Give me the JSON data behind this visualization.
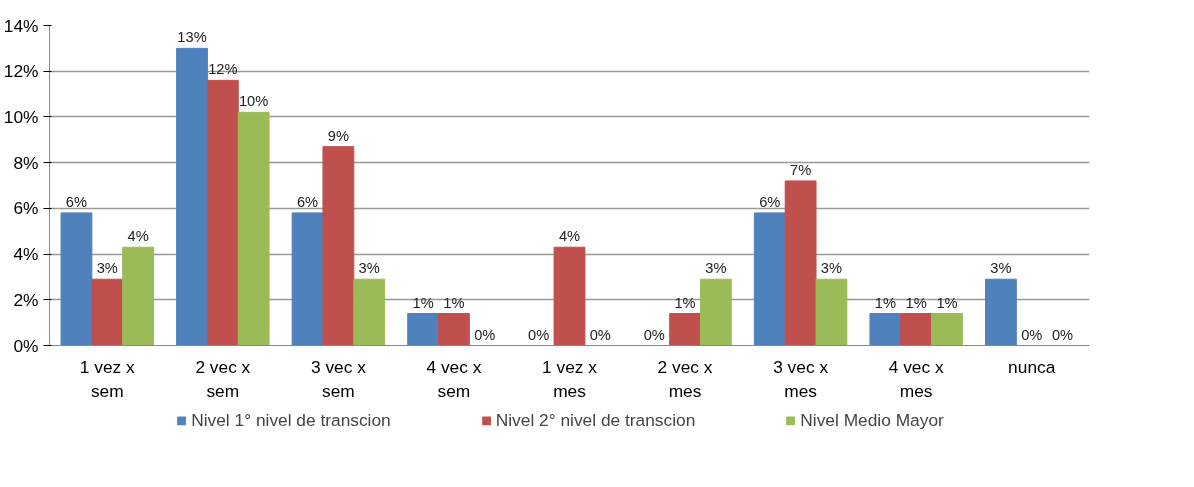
{
  "chart_data": {
    "type": "bar",
    "categories": [
      "1 vez x sem",
      "2 vec x sem",
      "3 vec x sem",
      "4 vec x sem",
      "1 vez x mes",
      "2 vec x mes",
      "3 vec x mes",
      "4 vec x mes",
      "nunca"
    ],
    "series": [
      {
        "name": "Nivel 1° nivel de transcion",
        "color": "#4f81bd",
        "values": [
          5.8,
          13.0,
          5.8,
          1.4,
          0,
          0,
          5.8,
          1.4,
          2.9
        ],
        "value_labels": [
          "6%",
          "13%",
          "6%",
          "1%",
          "0%",
          "0%",
          "6%",
          "1%",
          "3%"
        ]
      },
      {
        "name": "Nivel 2° nivel de transcion",
        "color": "#c0504d",
        "values": [
          2.9,
          11.6,
          8.7,
          1.4,
          4.3,
          1.4,
          7.2,
          1.4,
          0
        ],
        "value_labels": [
          "3%",
          "12%",
          "9%",
          "1%",
          "4%",
          "1%",
          "7%",
          "1%",
          "0%"
        ]
      },
      {
        "name": "Nivel Medio Mayor",
        "color": "#9bbb59",
        "values": [
          4.3,
          10.2,
          2.9,
          0,
          0,
          2.9,
          2.9,
          1.4,
          0
        ],
        "value_labels": [
          "4%",
          "10%",
          "3%",
          "0%",
          "0%",
          "3%",
          "3%",
          "1%",
          "0%"
        ]
      }
    ],
    "ylim": [
      0,
      14
    ],
    "yticks": [
      {
        "value": 0,
        "label": "0%"
      },
      {
        "value": 2,
        "label": "2%"
      },
      {
        "value": 4,
        "label": "4%"
      },
      {
        "value": 6,
        "label": "6%"
      },
      {
        "value": 8,
        "label": "8%"
      },
      {
        "value": 10,
        "label": "10%"
      },
      {
        "value": 12,
        "label": "12%"
      },
      {
        "value": 14,
        "label": "14%"
      }
    ],
    "grid": "y",
    "legend": "bottom"
  }
}
